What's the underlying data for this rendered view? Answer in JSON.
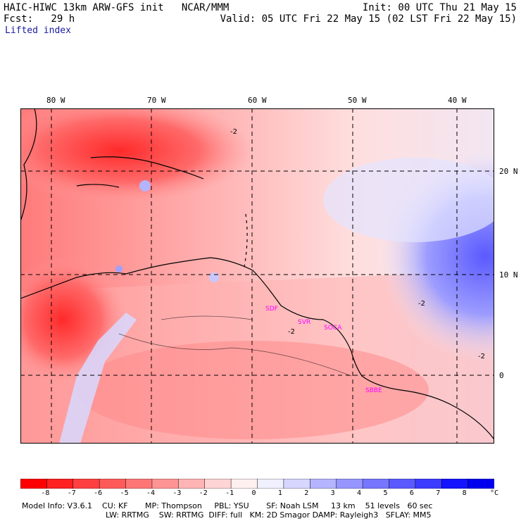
{
  "header": {
    "title": "HAIC-HIWC 13km ARW-GFS init   NCAR/MMM",
    "init": "Init: 00 UTC Thu 21 May 15",
    "fcst": "Fcst:   29 h",
    "valid": "Valid: 05 UTC Fri 22 May 15 (02 LST Fri 22 May 15)",
    "field": "Lifted index"
  },
  "map": {
    "lon_labels": [
      "80 W",
      "70 W",
      "60 W",
      "50 W",
      "40 W"
    ],
    "lat_labels": [
      "20 N",
      "10 N",
      "0"
    ],
    "contour_labels": [
      "-2",
      "-2",
      "-2",
      "-2"
    ],
    "stations": [
      "SDF",
      "SVR",
      "SOCA",
      "SBBE"
    ],
    "colors": {
      "strong_neg": "#ff0000",
      "neg": "#ff8c8c",
      "weak_neg": "#ffd2d2",
      "neutral": "#ffffff",
      "weak_pos": "#dcdcff",
      "pos": "#7878ff",
      "station": "#ff00ff"
    }
  },
  "legend": {
    "ticks": [
      "-8",
      "-7",
      "-6",
      "-5",
      "-4",
      "-3",
      "-2",
      "-1",
      "0",
      "1",
      "2",
      "3",
      "4",
      "5",
      "6",
      "7",
      "8"
    ],
    "unit": "°C",
    "colors": [
      "#ff0000",
      "#ff2020",
      "#ff4040",
      "#ff5a5a",
      "#ff7676",
      "#ff9494",
      "#ffb4b4",
      "#ffd4d4",
      "#fff0f0",
      "#f0f0ff",
      "#d6d6ff",
      "#b4b4ff",
      "#9696ff",
      "#7676ff",
      "#5a5aff",
      "#3c3cff",
      "#1414ff",
      "#0000ee"
    ]
  },
  "footer": {
    "line1": "Model Info: V3.6.1    CU: KF       MP: Thompson     PBL: YSU       SF: Noah LSM     13 km    51 levels   60 sec",
    "line2": "LW: RRTMG    SW: RRTMG  DIFF: full   KM: 2D Smagor DAMP: Rayleigh3   SFLAY: MM5"
  }
}
